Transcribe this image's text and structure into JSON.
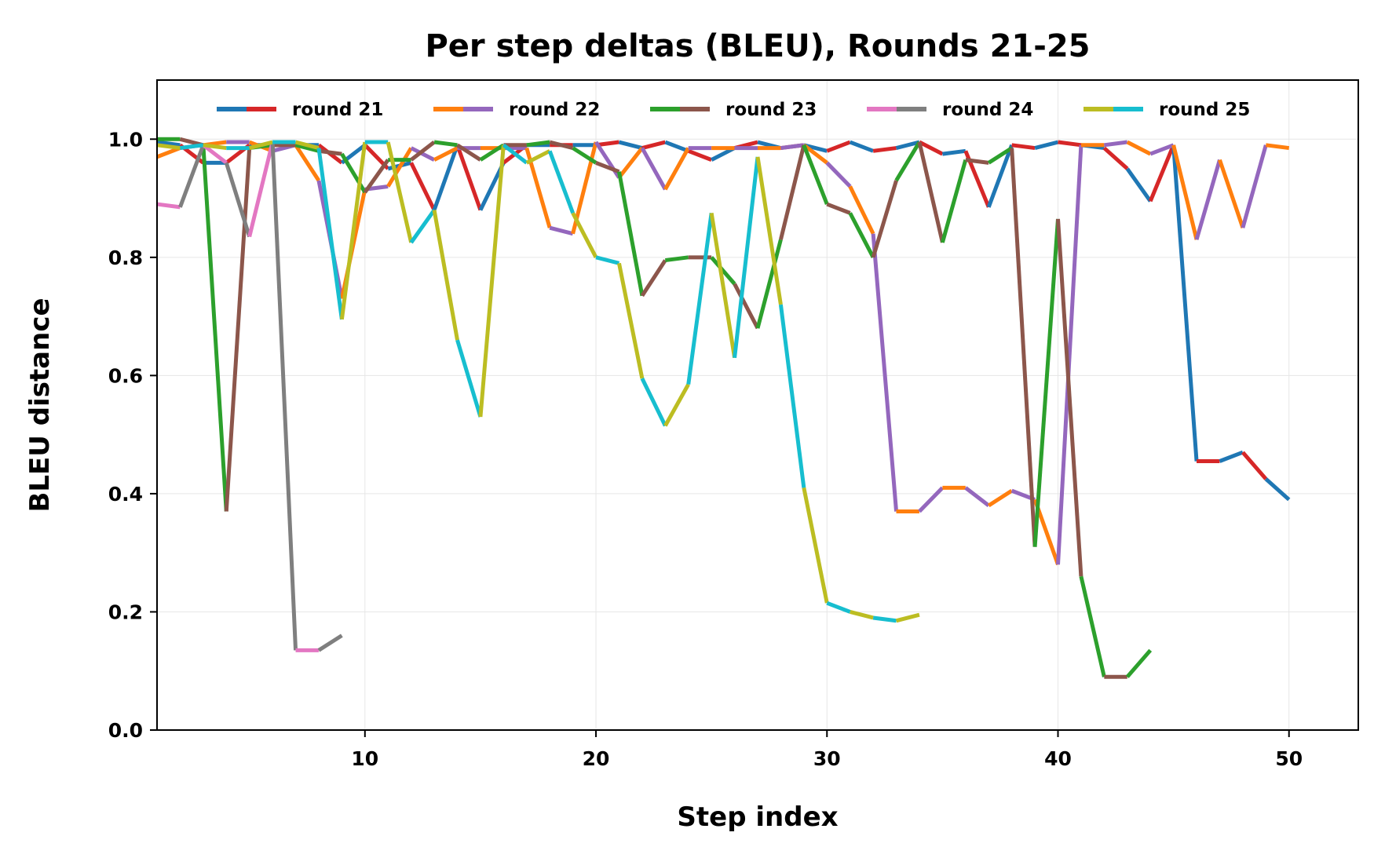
{
  "chart_data": {
    "type": "line",
    "title": "Per step deltas (BLEU), Rounds 21-25",
    "xlabel": "Step index",
    "ylabel": "BLEU distance",
    "xlim": [
      1,
      53
    ],
    "ylim": [
      0,
      1.1
    ],
    "xticks": [
      10,
      20,
      30,
      40,
      50
    ],
    "xtick_labels": [
      "10",
      "20",
      "30",
      "40",
      "50"
    ],
    "yticks": [
      0.0,
      0.2,
      0.4,
      0.6,
      0.8,
      1.0
    ],
    "ytick_labels": [
      "0.0",
      "0.2",
      "0.4",
      "0.6",
      "0.8",
      "1.0"
    ],
    "grid": true,
    "legend_position": "top-center",
    "note": "Each round's line alternates between its two legend colours segment by segment.",
    "series": [
      {
        "name": "round 21",
        "colors": [
          "#1f77b4",
          "#d62728"
        ],
        "x": [
          1,
          2,
          3,
          4,
          5,
          6,
          7,
          8,
          9,
          10,
          11,
          12,
          13,
          14,
          15,
          16,
          17,
          18,
          19,
          20,
          21,
          22,
          23,
          24,
          25,
          26,
          27,
          28,
          29,
          30,
          31,
          32,
          33,
          34,
          35,
          36,
          37,
          38,
          39,
          40,
          41,
          42,
          43,
          44,
          45,
          46,
          47,
          48,
          49,
          50
        ],
        "y": [
          0.995,
          0.99,
          0.96,
          0.96,
          0.99,
          0.99,
          0.99,
          0.99,
          0.96,
          0.99,
          0.95,
          0.96,
          0.88,
          0.99,
          0.88,
          0.96,
          0.99,
          0.99,
          0.99,
          0.99,
          0.995,
          0.985,
          0.995,
          0.98,
          0.965,
          0.985,
          0.995,
          0.985,
          0.99,
          0.98,
          0.995,
          0.98,
          0.985,
          0.995,
          0.975,
          0.98,
          0.885,
          0.99,
          0.985,
          0.995,
          0.99,
          0.985,
          0.95,
          0.895,
          0.99,
          0.455,
          0.455,
          0.47,
          0.425,
          0.39
        ]
      },
      {
        "name": "round 22",
        "colors": [
          "#ff7f0e",
          "#9467bd"
        ],
        "x": [
          1,
          2,
          3,
          4,
          5,
          6,
          7,
          8,
          9,
          10,
          11,
          12,
          13,
          14,
          15,
          16,
          17,
          18,
          19,
          20,
          21,
          22,
          23,
          24,
          25,
          26,
          27,
          28,
          29,
          30,
          31,
          32,
          33,
          34,
          35,
          36,
          37,
          38,
          39,
          40,
          41,
          42,
          43,
          44,
          45,
          46,
          47,
          48,
          49,
          50
        ],
        "y": [
          0.97,
          0.985,
          0.99,
          0.995,
          0.995,
          0.98,
          0.99,
          0.93,
          0.73,
          0.915,
          0.92,
          0.985,
          0.965,
          0.985,
          0.985,
          0.985,
          0.985,
          0.85,
          0.84,
          0.995,
          0.935,
          0.985,
          0.915,
          0.985,
          0.985,
          0.985,
          0.985,
          0.985,
          0.99,
          0.96,
          0.92,
          0.84,
          0.37,
          0.37,
          0.41,
          0.41,
          0.38,
          0.405,
          0.39,
          0.28,
          0.99,
          0.99,
          0.995,
          0.975,
          0.99,
          0.83,
          0.965,
          0.85,
          0.99,
          0.985
        ]
      },
      {
        "name": "round 23",
        "colors": [
          "#2ca02c",
          "#8c564b"
        ],
        "x": [
          1,
          2,
          3,
          4,
          5,
          6,
          7,
          8,
          9,
          10,
          11,
          12,
          13,
          14,
          15,
          16,
          17,
          18,
          19,
          20,
          21,
          22,
          23,
          24,
          25,
          26,
          27,
          28,
          29,
          30,
          31,
          32,
          33,
          34,
          35,
          36,
          37,
          38,
          39,
          40,
          41,
          42,
          43,
          44
        ],
        "y": [
          1.0,
          1.0,
          0.99,
          0.37,
          0.985,
          0.99,
          0.99,
          0.98,
          0.975,
          0.91,
          0.965,
          0.965,
          0.995,
          0.99,
          0.965,
          0.99,
          0.99,
          0.995,
          0.985,
          0.96,
          0.945,
          0.735,
          0.795,
          0.8,
          0.8,
          0.755,
          0.68,
          0.83,
          0.99,
          0.89,
          0.875,
          0.8,
          0.93,
          0.995,
          0.825,
          0.965,
          0.96,
          0.985,
          0.31,
          0.865,
          0.26,
          0.09,
          0.09,
          0.135
        ]
      },
      {
        "name": "round 24",
        "colors": [
          "#e377c2",
          "#7f7f7f"
        ],
        "x": [
          1,
          2,
          3,
          4,
          5,
          6,
          7,
          8,
          9
        ],
        "y": [
          0.89,
          0.885,
          0.99,
          0.96,
          0.835,
          0.995,
          0.135,
          0.135,
          0.16
        ]
      },
      {
        "name": "round 25",
        "colors": [
          "#bcbd22",
          "#17becf"
        ],
        "x": [
          1,
          2,
          3,
          4,
          5,
          6,
          7,
          8,
          9,
          10,
          11,
          12,
          13,
          14,
          15,
          16,
          17,
          18,
          19,
          20,
          21,
          22,
          23,
          24,
          25,
          26,
          27,
          28,
          29,
          30,
          31,
          32,
          33,
          34
        ],
        "y": [
          0.99,
          0.985,
          0.99,
          0.985,
          0.985,
          0.995,
          0.995,
          0.985,
          0.695,
          0.995,
          0.995,
          0.825,
          0.88,
          0.66,
          0.53,
          0.99,
          0.96,
          0.98,
          0.875,
          0.8,
          0.79,
          0.595,
          0.515,
          0.585,
          0.875,
          0.63,
          0.97,
          0.72,
          0.41,
          0.215,
          0.2,
          0.19,
          0.185,
          0.195
        ]
      }
    ]
  }
}
